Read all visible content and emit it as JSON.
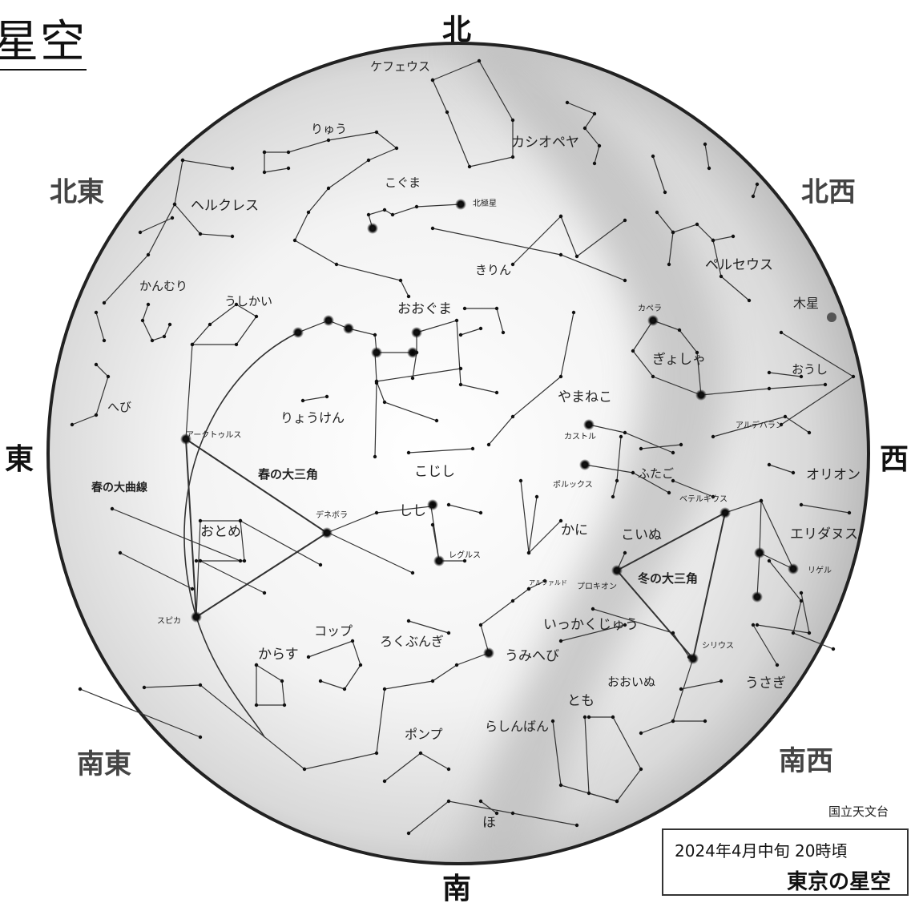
{
  "title": "星空",
  "directions": {
    "north": "北",
    "south": "南",
    "east": "東",
    "west": "西",
    "northeast": "北東",
    "northwest": "北西",
    "southeast": "南東",
    "southwest": "南西"
  },
  "labels": [
    {
      "key": "cepheus",
      "text": "ケフェウス"
    },
    {
      "key": "cassiopeia",
      "text": "カシオペヤ"
    },
    {
      "key": "draco",
      "text": "りゅう"
    },
    {
      "key": "ursa-minor",
      "text": "こぐま"
    },
    {
      "key": "polaris",
      "text": "北極星"
    },
    {
      "key": "hercules",
      "text": "ヘルクレス"
    },
    {
      "key": "camelopardalis",
      "text": "きりん"
    },
    {
      "key": "perseus",
      "text": "ペルセウス"
    },
    {
      "key": "jupiter",
      "text": "木星"
    },
    {
      "key": "corona-borealis",
      "text": "かんむり"
    },
    {
      "key": "bootes",
      "text": "うしかい"
    },
    {
      "key": "ursa-major",
      "text": "おおぐま"
    },
    {
      "key": "capella",
      "text": "カペラ"
    },
    {
      "key": "auriga",
      "text": "ぎょしゃ"
    },
    {
      "key": "taurus",
      "text": "おうし"
    },
    {
      "key": "serpens",
      "text": "へび"
    },
    {
      "key": "canes-venatici",
      "text": "りょうけん"
    },
    {
      "key": "lynx",
      "text": "やまねこ"
    },
    {
      "key": "aldebaran",
      "text": "アルデバラン"
    },
    {
      "key": "arcturus",
      "text": "アークトゥルス"
    },
    {
      "key": "castor",
      "text": "カストル"
    },
    {
      "key": "spring-triangle",
      "text": "春の大三角"
    },
    {
      "key": "leo-minor",
      "text": "こじし"
    },
    {
      "key": "gemini",
      "text": "ふたご"
    },
    {
      "key": "orion",
      "text": "オリオン"
    },
    {
      "key": "spring-curve",
      "text": "春の大曲線"
    },
    {
      "key": "pollux",
      "text": "ポルックス"
    },
    {
      "key": "betelgeuse",
      "text": "ベテルギウス"
    },
    {
      "key": "denebola",
      "text": "デネボラ"
    },
    {
      "key": "leo",
      "text": "しし"
    },
    {
      "key": "virgo",
      "text": "おとめ"
    },
    {
      "key": "cancer",
      "text": "かに"
    },
    {
      "key": "canis-minor",
      "text": "こいぬ"
    },
    {
      "key": "eridanus",
      "text": "エリダヌス"
    },
    {
      "key": "regulus",
      "text": "レグルス"
    },
    {
      "key": "rigel",
      "text": "リゲル"
    },
    {
      "key": "procyon",
      "text": "プロキオン"
    },
    {
      "key": "winter-triangle",
      "text": "冬の大三角"
    },
    {
      "key": "spica",
      "text": "スピカ"
    },
    {
      "key": "monoceros",
      "text": "いっかくじゅう"
    },
    {
      "key": "crater",
      "text": "コップ"
    },
    {
      "key": "sextans",
      "text": "ろくぶんぎ"
    },
    {
      "key": "corvus",
      "text": "からす"
    },
    {
      "key": "hydra",
      "text": "うみへび"
    },
    {
      "key": "sirius",
      "text": "シリウス"
    },
    {
      "key": "lepus",
      "text": "うさぎ"
    },
    {
      "key": "canis-major",
      "text": "おおいぬ"
    },
    {
      "key": "puppis",
      "text": "とも"
    },
    {
      "key": "pyxis",
      "text": "らしんばん"
    },
    {
      "key": "antlia",
      "text": "ポンプ"
    },
    {
      "key": "vela",
      "text": "ほ"
    },
    {
      "key": "alphard",
      "text": "アルファルド"
    }
  ],
  "credit": "国立天文台",
  "info": {
    "date": "2024年4月中旬 20時頃",
    "place": "東京の星空"
  }
}
